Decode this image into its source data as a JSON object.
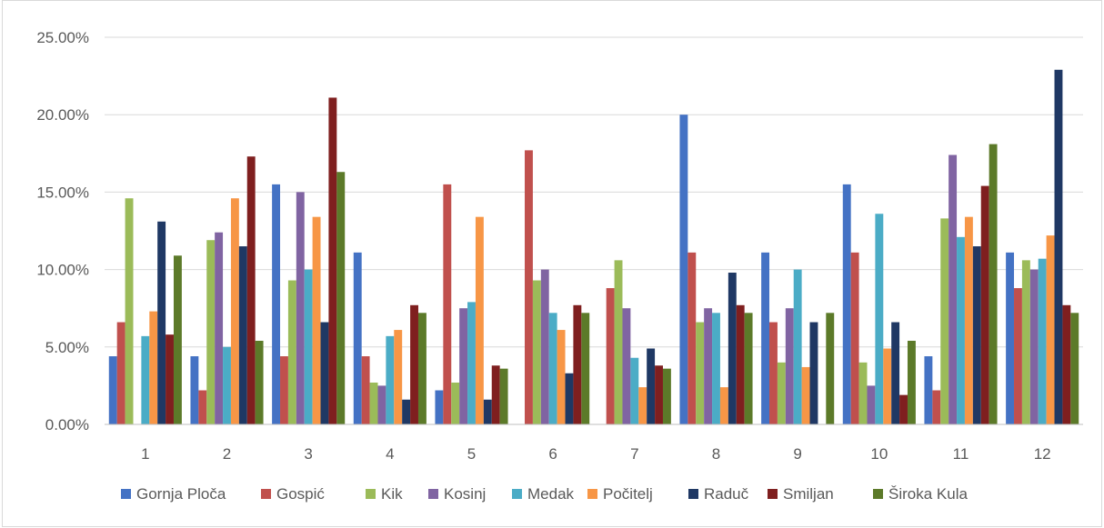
{
  "chart_data": {
    "type": "bar",
    "title": "",
    "xlabel": "",
    "ylabel": "",
    "ylim": [
      0,
      0.25
    ],
    "y_ticks": [
      "0.00%",
      "5.00%",
      "10.00%",
      "15.00%",
      "20.00%",
      "25.00%"
    ],
    "y_tick_values": [
      0,
      0.05,
      0.1,
      0.15,
      0.2,
      0.25
    ],
    "grid": true,
    "legend_position": "bottom",
    "categories": [
      "1",
      "2",
      "3",
      "4",
      "5",
      "6",
      "7",
      "8",
      "9",
      "10",
      "11",
      "12"
    ],
    "series": [
      {
        "name": "Gornja Ploča",
        "color": "#4472c4",
        "values": [
          0.044,
          0.044,
          0.155,
          0.111,
          0.022,
          0.0,
          0.0,
          0.2,
          0.111,
          0.155,
          0.044,
          0.111
        ]
      },
      {
        "name": "Gospić",
        "color": "#c0504d",
        "values": [
          0.066,
          0.022,
          0.044,
          0.044,
          0.155,
          0.177,
          0.088,
          0.111,
          0.066,
          0.111,
          0.022,
          0.088
        ]
      },
      {
        "name": "Kik",
        "color": "#9bbb59",
        "values": [
          0.146,
          0.119,
          0.093,
          0.027,
          0.027,
          0.093,
          0.106,
          0.066,
          0.04,
          0.04,
          0.133,
          0.106
        ]
      },
      {
        "name": "Kosinj",
        "color": "#8064a2",
        "values": [
          0.0,
          0.124,
          0.15,
          0.025,
          0.075,
          0.1,
          0.075,
          0.075,
          0.075,
          0.025,
          0.174,
          0.1
        ]
      },
      {
        "name": "Medak",
        "color": "#4bacc6",
        "values": [
          0.057,
          0.05,
          0.1,
          0.057,
          0.079,
          0.072,
          0.043,
          0.072,
          0.1,
          0.136,
          0.121,
          0.107
        ]
      },
      {
        "name": "Počitelj",
        "color": "#f79646",
        "values": [
          0.073,
          0.146,
          0.134,
          0.061,
          0.134,
          0.061,
          0.024,
          0.024,
          0.037,
          0.049,
          0.134,
          0.122
        ]
      },
      {
        "name": "Raduč",
        "color": "#1f3864",
        "values": [
          0.131,
          0.115,
          0.066,
          0.016,
          0.016,
          0.033,
          0.049,
          0.098,
          0.066,
          0.066,
          0.115,
          0.229
        ]
      },
      {
        "name": "Smiljan",
        "color": "#7f1f1f",
        "values": [
          0.058,
          0.173,
          0.211,
          0.077,
          0.038,
          0.077,
          0.038,
          0.077,
          0.0,
          0.019,
          0.154,
          0.077
        ]
      },
      {
        "name": "Široka Kula",
        "color": "#5c7a29",
        "values": [
          0.109,
          0.054,
          0.163,
          0.072,
          0.036,
          0.072,
          0.036,
          0.072,
          0.072,
          0.054,
          0.181,
          0.072
        ]
      }
    ]
  }
}
